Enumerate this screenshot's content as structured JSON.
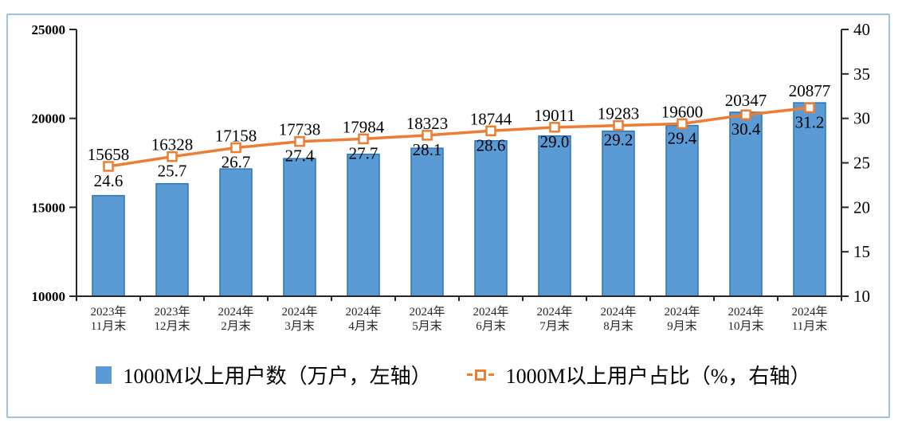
{
  "frame": {
    "border_color": "#9DC3E6",
    "background": "#FFFFFF"
  },
  "chart_data": {
    "type": "bar+line",
    "title": "",
    "categories": [
      [
        "2023年",
        "11月末"
      ],
      [
        "2023年",
        "12月末"
      ],
      [
        "2024年",
        "2月末"
      ],
      [
        "2024年",
        "3月末"
      ],
      [
        "2024年",
        "4月末"
      ],
      [
        "2024年",
        "5月末"
      ],
      [
        "2024年",
        "6月末"
      ],
      [
        "2024年",
        "7月末"
      ],
      [
        "2024年",
        "8月末"
      ],
      [
        "2024年",
        "9月末"
      ],
      [
        "2024年",
        "10月末"
      ],
      [
        "2024年",
        "11月末"
      ]
    ],
    "series": [
      {
        "name": "1000M以上用户数（万户，左轴）",
        "type": "bar",
        "axis": "left",
        "values": [
          15658,
          16328,
          17158,
          17738,
          17984,
          18323,
          18744,
          19011,
          19283,
          19600,
          20347,
          20877
        ],
        "color": "#5B9BD5",
        "border_color": "#2E75B6"
      },
      {
        "name": "1000M以上用户占比（%，右轴）",
        "type": "line",
        "axis": "right",
        "values": [
          24.6,
          25.7,
          26.7,
          27.4,
          27.7,
          28.1,
          28.6,
          29.0,
          29.2,
          29.4,
          30.4,
          31.2
        ],
        "color": "#ED7D31",
        "marker": "open-square"
      }
    ],
    "left_axis": {
      "min": 10000,
      "max": 25000,
      "step": 5000,
      "ticks": [
        25000,
        20000,
        15000,
        10000
      ]
    },
    "right_axis": {
      "min": 10,
      "max": 40,
      "step": 5,
      "ticks": [
        40,
        35,
        30,
        25,
        20,
        15,
        10
      ]
    },
    "grid": false,
    "legend_position": "bottom",
    "axis_color": "#262626",
    "label_color": "#000000"
  }
}
